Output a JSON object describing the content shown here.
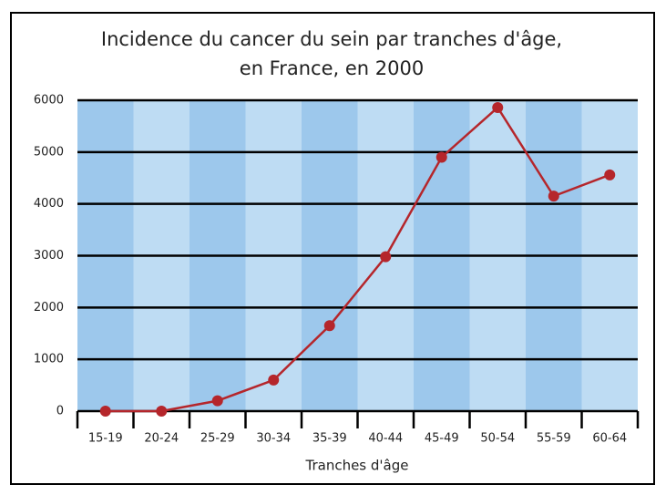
{
  "chart_data": {
    "type": "line",
    "title": [
      "Incidence du cancer du sein par tranches d'âge,",
      "en France, en 2000"
    ],
    "x_label": "Tranches d'âge",
    "categories": [
      "15-19",
      "20-24",
      "25-29",
      "30-34",
      "35-39",
      "40-44",
      "45-49",
      "50-54",
      "55-59",
      "60-64"
    ],
    "values": [
      0,
      0,
      200,
      600,
      1650,
      2980,
      4900,
      5860,
      4150,
      4560
    ],
    "color": "#b5262b",
    "band_colors": [
      "#9dc8ec",
      "#bedcf3"
    ],
    "grid_color": "#000000",
    "ylim": [
      0,
      6000
    ],
    "yticks": [
      0,
      1000,
      2000,
      3000,
      4000,
      5000,
      6000
    ],
    "grid": true
  }
}
